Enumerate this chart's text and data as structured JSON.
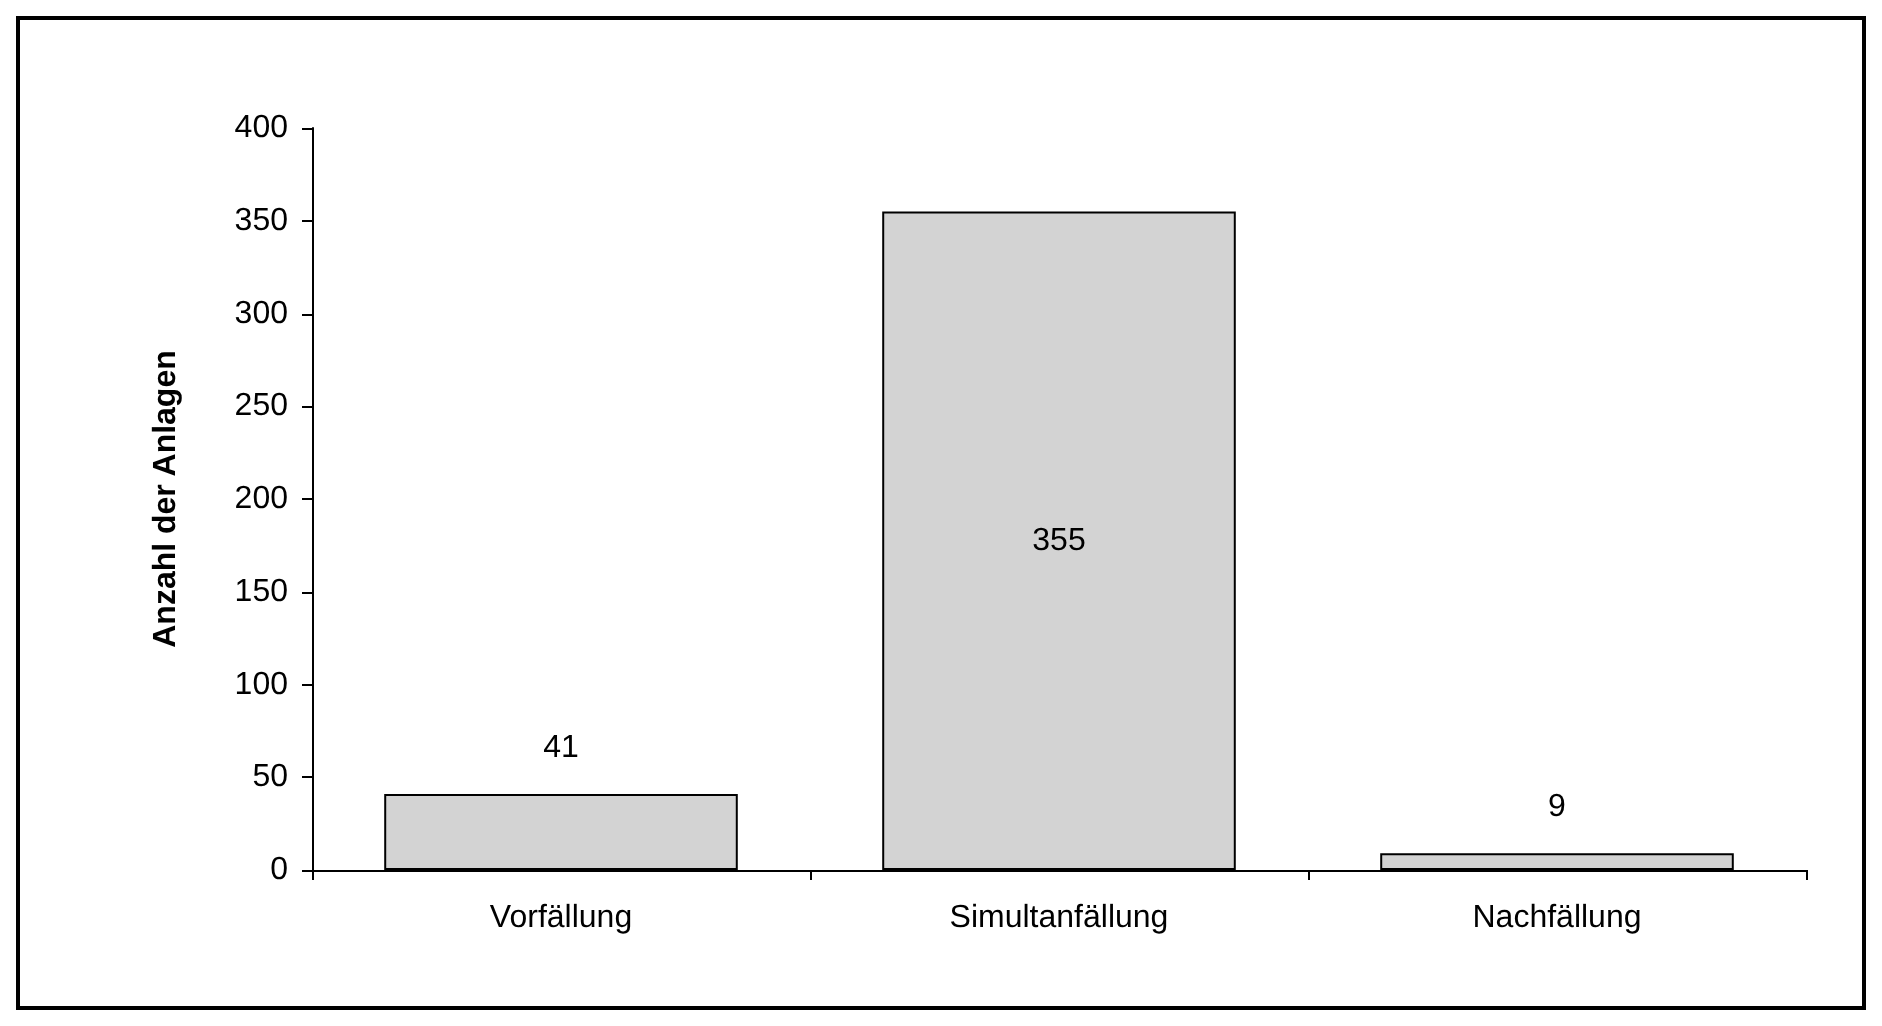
{
  "chart_data": {
    "type": "bar",
    "ylabel": "Anzahl der Anlagen",
    "categories": [
      "Vorfällung",
      "Simultanfällung",
      "Nachfällung"
    ],
    "values": [
      41,
      355,
      9
    ],
    "color": "#d3d3d3",
    "ylim": [
      0,
      400
    ],
    "yticks": [
      0,
      50,
      100,
      150,
      200,
      250,
      300,
      350,
      400
    ],
    "data_labels": true,
    "grid": false
  }
}
